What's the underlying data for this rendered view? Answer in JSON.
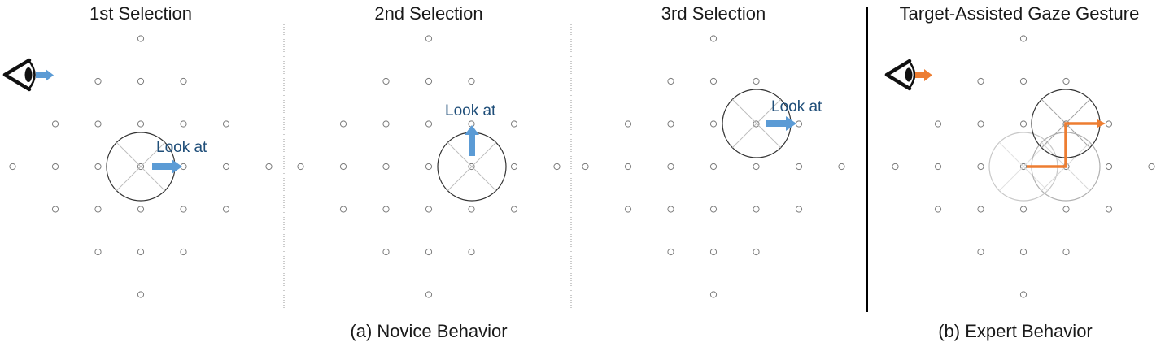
{
  "panels": [
    {
      "title": "1st Selection",
      "look_label": "Look at"
    },
    {
      "title": "2nd Selection",
      "look_label": "Look at"
    },
    {
      "title": "3rd Selection",
      "look_label": "Look at"
    },
    {
      "title": "Target-Assisted Gaze Gesture"
    }
  ],
  "captions": {
    "novice": "(a) Novice Behavior",
    "expert": "(b) Expert Behavior"
  },
  "colors": {
    "novice_arrow": "#5b9bd5",
    "expert_arrow": "#ed7d31",
    "label_text": "#1f4e79"
  },
  "icons": {
    "eye_novice": "eye-icon",
    "eye_expert": "eye-icon"
  }
}
